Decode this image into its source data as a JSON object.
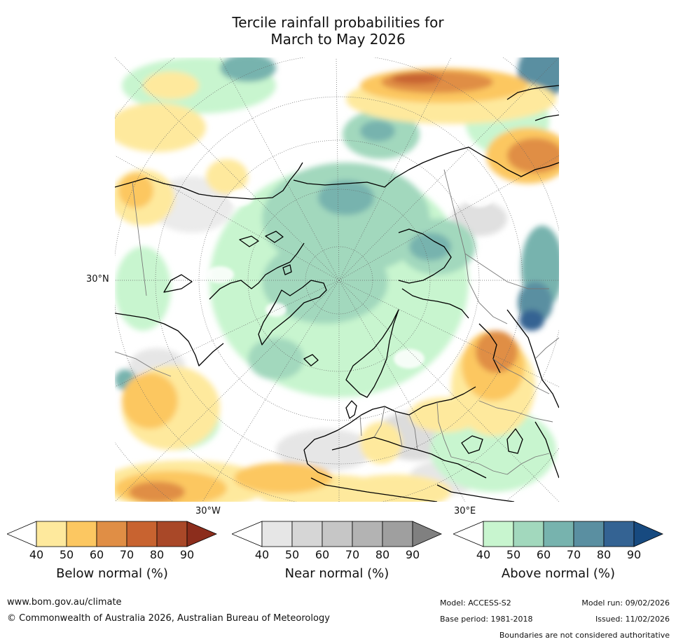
{
  "title": {
    "line1": "Tercile rainfall probabilities for",
    "line2": "March to May 2026"
  },
  "map": {
    "projection": "north-polar-stereographic",
    "labels": {
      "lat_30n": "30°N",
      "lon_30w": "30°W",
      "lon_30e": "30°E"
    }
  },
  "colorbars": [
    {
      "id": "below",
      "label": "Below normal (%)",
      "ticks": [
        "40",
        "50",
        "60",
        "70",
        "80",
        "90"
      ],
      "colors": [
        "#ffffff",
        "#fee99d",
        "#fcc761",
        "#e08e45",
        "#c86330",
        "#a94828",
        "#8c2d1c"
      ]
    },
    {
      "id": "near",
      "label": "Near normal (%)",
      "ticks": [
        "40",
        "50",
        "60",
        "70",
        "80",
        "90"
      ],
      "colors": [
        "#ffffff",
        "#e6e6e6",
        "#d6d6d6",
        "#c6c6c6",
        "#b3b3b3",
        "#9f9f9f",
        "#808080"
      ]
    },
    {
      "id": "above",
      "label": "Above normal (%)",
      "ticks": [
        "40",
        "50",
        "60",
        "70",
        "80",
        "90"
      ],
      "colors": [
        "#ffffff",
        "#c8f5cf",
        "#a2d8bd",
        "#77b3ae",
        "#5a8fa1",
        "#346393",
        "#174a80"
      ]
    }
  ],
  "footer": {
    "url": "www.bom.gov.au/climate",
    "copyright": "© Commonwealth of Australia 2026, Australian Bureau of Meteorology",
    "model": "Model: ACCESS-S2",
    "base_period": "Base period: 1981-2018",
    "model_run": "Model run: 09/02/2026",
    "issued": "Issued: 11/02/2026",
    "disclaimer": "Boundaries are not considered authoritative"
  }
}
